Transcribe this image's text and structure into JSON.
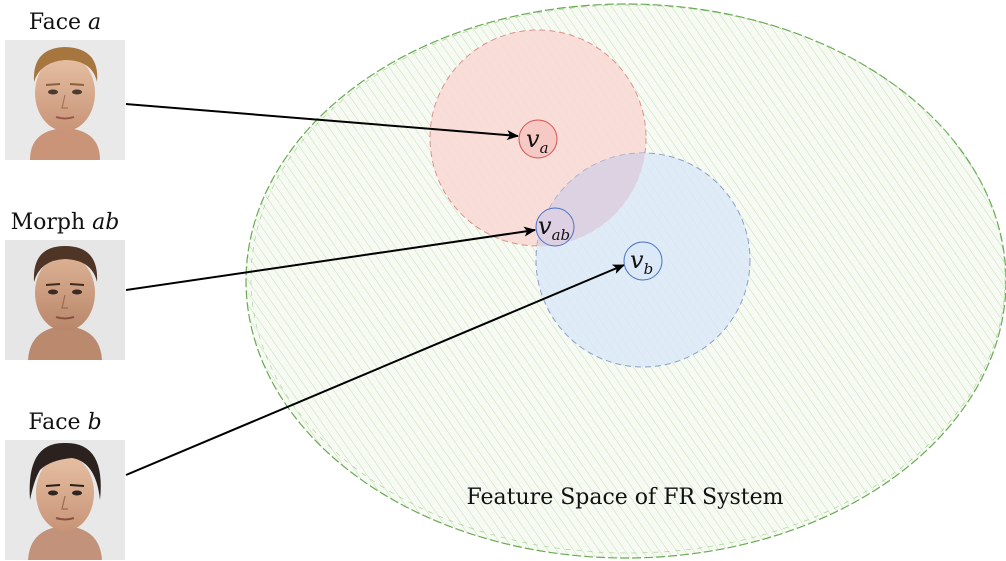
{
  "faces": [
    {
      "label_prefix": "Face",
      "label_var": "a"
    },
    {
      "label_prefix": "Morph",
      "label_var": "ab"
    },
    {
      "label_prefix": "Face",
      "label_var": "b"
    }
  ],
  "feature_space": {
    "label": "Feature Space of FR System"
  },
  "vectors": [
    {
      "base": "v",
      "sub": "a"
    },
    {
      "base": "v",
      "sub": "ab"
    },
    {
      "base": "v",
      "sub": "b"
    }
  ],
  "colors": {
    "space_stroke": "#6aaa55",
    "space_fill": "#eef6e6",
    "region_a_fill": "#f9d9d5",
    "region_b_fill": "#dbe8f8",
    "overlap_fill": "#e2d7e6",
    "node_a_stroke": "#d9534f",
    "node_b_stroke": "#4a72c4",
    "arrow": "#000000"
  },
  "icons": [
    "face-a-photo",
    "morph-ab-photo",
    "face-b-photo"
  ]
}
